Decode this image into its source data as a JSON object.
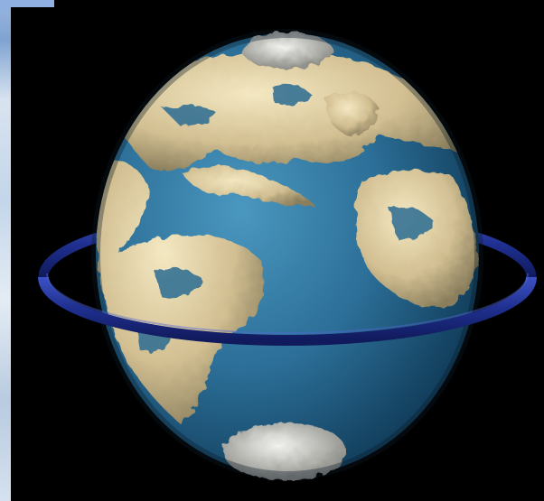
{
  "scene": {
    "subject": "globe-with-ring",
    "colors": {
      "ocean_light": "#3d86ad",
      "ocean_dark": "#174f72",
      "cloud_light": "#f0e3b8",
      "cloud_mid": "#c9b68a",
      "cloud_shadow": "#7f7658",
      "ice": "#d9d9d4",
      "ring": "#1f2f8e",
      "ring_highlight": "#3c52c4",
      "background": "#000000",
      "sky": "#c4d6ea"
    }
  }
}
